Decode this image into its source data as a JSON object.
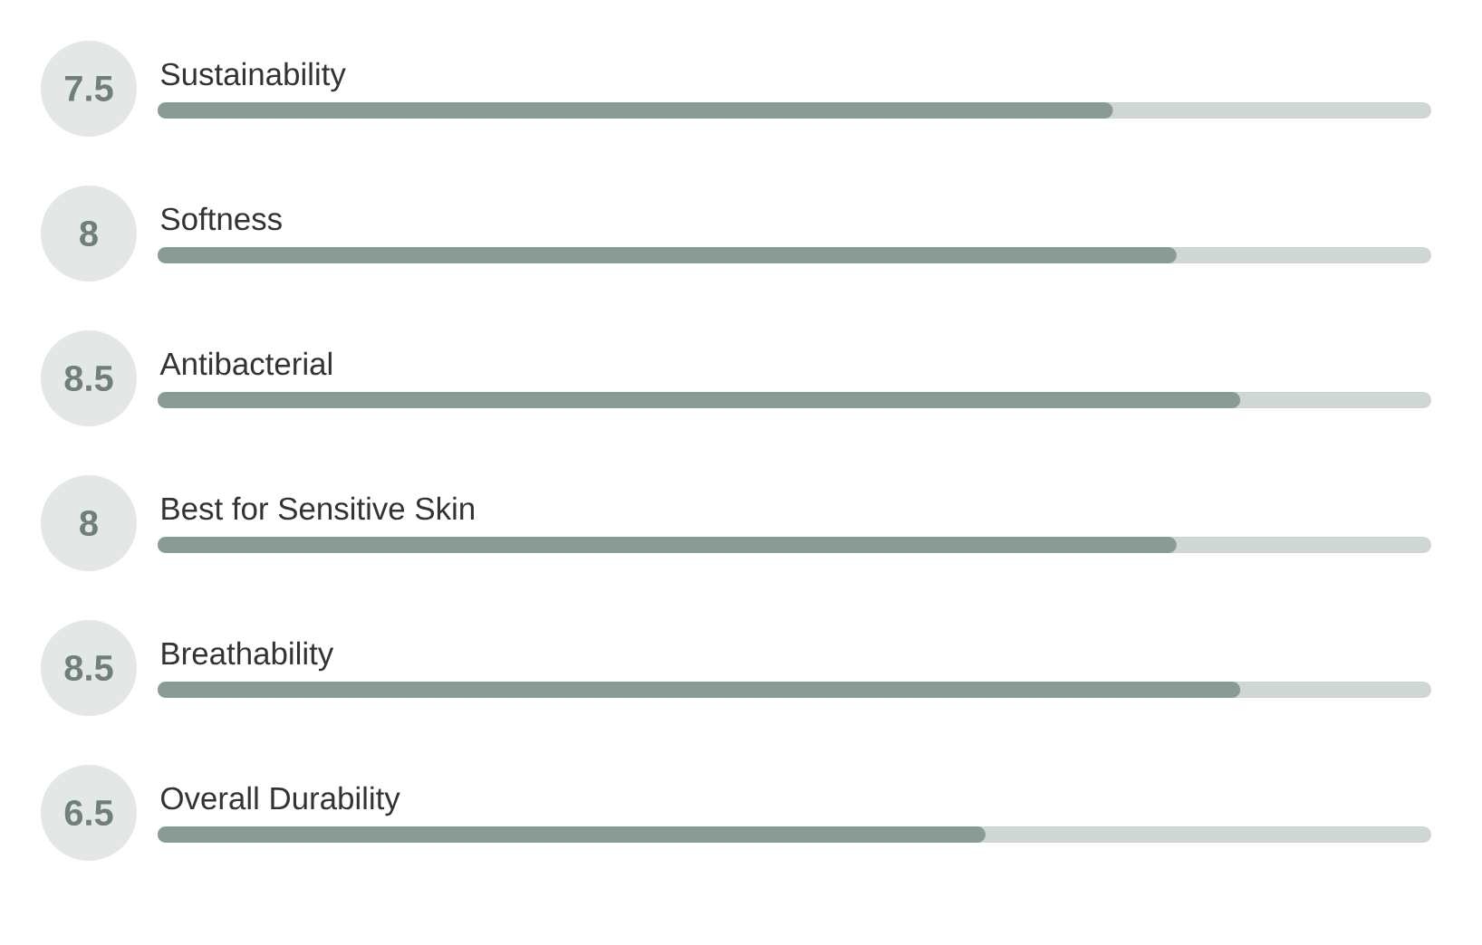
{
  "chart_data": {
    "type": "bar",
    "orientation": "horizontal",
    "categories": [
      "Sustainability",
      "Softness",
      "Antibacterial",
      "Best for Sensitive Skin",
      "Breathability",
      "Overall Durability"
    ],
    "values": [
      7.5,
      8,
      8.5,
      8,
      8.5,
      6.5
    ],
    "color": "#8a9a95",
    "xlim": [
      0,
      10
    ],
    "data_labels": true
  }
}
